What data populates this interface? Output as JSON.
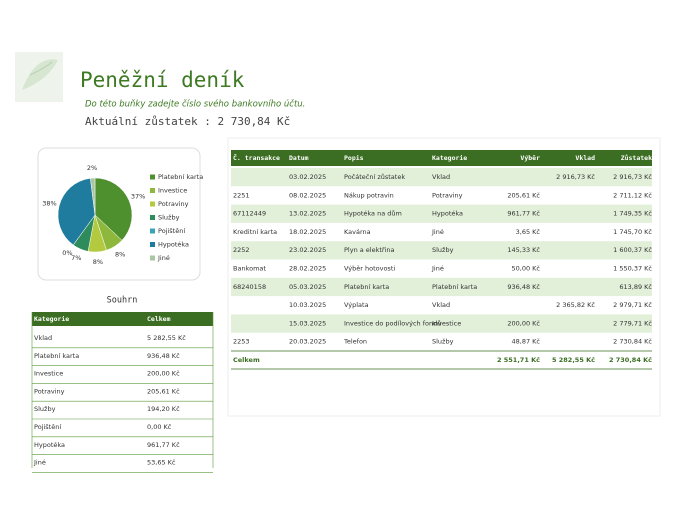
{
  "header": {
    "title": "Peněžní deník",
    "subtitle": "Do této buňky zadejte číslo svého bankovního účtu.",
    "balance": "Aktuální zůstatek : 2 730,84 Kč"
  },
  "chart_data": {
    "type": "pie",
    "categories": [
      "Platební karta",
      "Investice",
      "Potraviny",
      "Služby",
      "Pojištění",
      "Hypotéka",
      "Jiné"
    ],
    "values": [
      37,
      8,
      8,
      7,
      0,
      38,
      2
    ],
    "value_labels": [
      "37%",
      "8%",
      "8%",
      "7%",
      "0%",
      "38%",
      "2%"
    ],
    "colors": [
      "#4e8f2e",
      "#8db83b",
      "#b3c93f",
      "#2e8c5c",
      "#3aa3b5",
      "#1f7c9e",
      "#a9c7a0"
    ],
    "legend": "right"
  },
  "summary": {
    "title": "Souhrn",
    "columns": [
      "Kategorie",
      "Celkem"
    ],
    "rows": [
      [
        "Vklad",
        "5 282,55 Kč"
      ],
      [
        "Platební karta",
        "936,48 Kč"
      ],
      [
        "Investice",
        "200,00 Kč"
      ],
      [
        "Potraviny",
        "205,61 Kč"
      ],
      [
        "Služby",
        "194,20 Kč"
      ],
      [
        "Pojištění",
        "0,00 Kč"
      ],
      [
        "Hypotéka",
        "961,77 Kč"
      ],
      [
        "Jiné",
        "53,65 Kč"
      ]
    ]
  },
  "transactions": {
    "columns": [
      "Č. transakce",
      "Datum",
      "Popis",
      "Kategorie",
      "Výběr",
      "Vklad",
      "Zůstatek"
    ],
    "rows": [
      [
        null,
        "03.02.2025",
        "Počáteční zůstatek",
        "Vklad",
        null,
        "2 916,73 Kč",
        "2 916,73 Kč"
      ],
      [
        "2251",
        "08.02.2025",
        "Nákup potravin",
        "Potraviny",
        "205,61 Kč",
        null,
        "2 711,12 Kč"
      ],
      [
        "67112449",
        "13.02.2025",
        "Hypotéka na dům",
        "Hypotéka",
        "961,77 Kč",
        null,
        "1 749,35 Kč"
      ],
      [
        "Kreditní karta",
        "18.02.2025",
        "Kavárna",
        "Jiné",
        "3,65 Kč",
        null,
        "1 745,70 Kč"
      ],
      [
        "2252",
        "23.02.2025",
        "Plyn a elektřina",
        "Služby",
        "145,33 Kč",
        null,
        "1 600,37 Kč"
      ],
      [
        "Bankomat",
        "28.02.2025",
        "Výběr hotovosti",
        "Jiné",
        "50,00 Kč",
        null,
        "1 550,37 Kč"
      ],
      [
        "68240158",
        "05.03.2025",
        "Platební karta",
        "Platební karta",
        "936,48 Kč",
        null,
        "613,89 Kč"
      ],
      [
        null,
        "10.03.2025",
        "Výplata",
        "Vklad",
        null,
        "2 365,82 Kč",
        "2 979,71 Kč"
      ],
      [
        null,
        "15.03.2025",
        "Investice do podílových fondů",
        "Investice",
        "200,00 Kč",
        null,
        "2 779,71 Kč"
      ],
      [
        "2253",
        "20.03.2025",
        "Telefon",
        "Služby",
        "48,87 Kč",
        null,
        "2 730,84 Kč"
      ]
    ],
    "total": [
      "Celkem",
      null,
      null,
      null,
      "2 551,71 Kč",
      "5 282,55 Kč",
      "2 730,84 Kč"
    ]
  }
}
